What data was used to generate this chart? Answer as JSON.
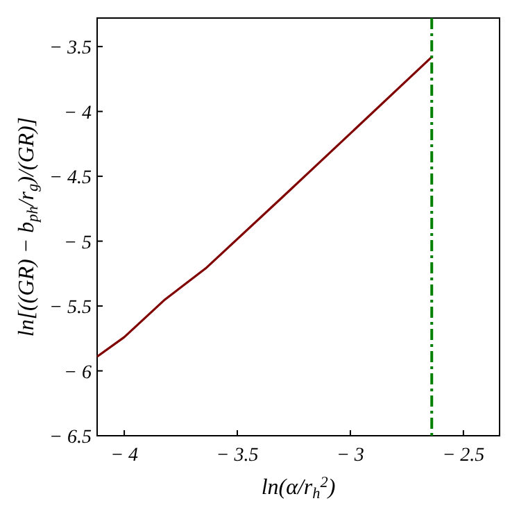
{
  "chart_data": {
    "type": "line",
    "xlabel": "ln(α/r$_{h}$$^{2}$)",
    "ylabel": "ln[((GR) − b$_{ph}$/r$_{g}$)/(GR)]",
    "x": [
      -4.12,
      -4.0,
      -3.82,
      -3.64,
      -3.3,
      -3.0,
      -2.64
    ],
    "series": [
      {
        "color": "#800000",
        "values": [
          -5.89,
          -5.74,
          -5.45,
          -5.21,
          -4.66,
          -4.17,
          -3.58
        ]
      }
    ],
    "xlim": [
      -4.12,
      -2.34
    ],
    "xticks": [
      -4,
      -3.5,
      -3,
      -2.5
    ],
    "ylim": [
      -6.5,
      -3.28
    ],
    "yticks": [
      -6.5,
      -6,
      -5.5,
      -5,
      -4.5,
      -4,
      -3.5
    ],
    "ref_lines": [
      {
        "axis": "x",
        "value": -2.64,
        "color": "#008000",
        "line_style": "dashdot"
      }
    ],
    "grid": false,
    "marker": "none",
    "line_style": "solid"
  }
}
